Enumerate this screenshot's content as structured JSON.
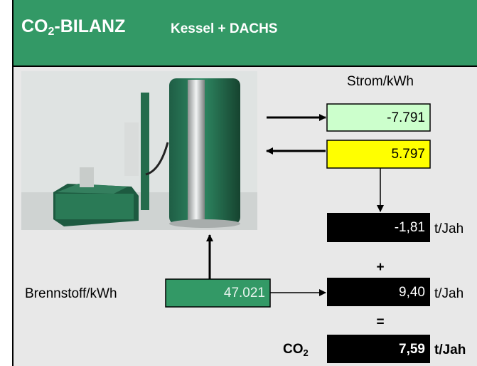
{
  "header": {
    "title": {
      "main": "CO",
      "sub": "2",
      "rest": "-BILANZ"
    },
    "subtitle": "Kessel + DACHS"
  },
  "strom": {
    "label": "Strom/kWh",
    "out": "-7.791",
    "in": "5.797"
  },
  "brennstoff": {
    "label": "Brennstoff/kWh",
    "value": "47.021"
  },
  "results": [
    {
      "value": "-1,81",
      "unit": "t/Jah"
    },
    {
      "operator": "+",
      "value": "9,40",
      "unit": "t/Jah"
    },
    {
      "operator": "=",
      "label": {
        "main": "CO",
        "sub": "2"
      },
      "value": "7,59",
      "unit": "t/Jah"
    }
  ]
}
